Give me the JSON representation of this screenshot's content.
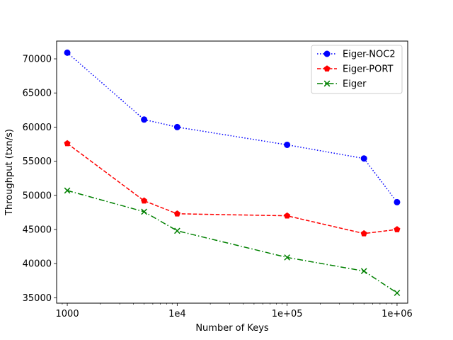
{
  "chart_data": {
    "type": "line",
    "xscale": "log",
    "xlabel": "Number of Keys",
    "ylabel": "Throughput (txn/s)",
    "xlim": [
      800,
      1250000
    ],
    "ylim": [
      34200,
      72600
    ],
    "x_ticks": [
      1000,
      10000,
      100000,
      1000000
    ],
    "x_tick_labels": [
      "1000",
      "1e4",
      "1e+05",
      "1e+06"
    ],
    "y_ticks": [
      35000,
      40000,
      45000,
      50000,
      55000,
      60000,
      65000,
      70000
    ],
    "y_tick_labels": [
      "35000",
      "40000",
      "45000",
      "50000",
      "55000",
      "60000",
      "65000",
      "70000"
    ],
    "x": [
      1000,
      5000,
      10000,
      100000,
      500000,
      1000000
    ],
    "series": [
      {
        "name": "Eiger-NOC2",
        "color": "#0000ff",
        "marker": "circle",
        "linestyle": "dotted",
        "values": [
          70900,
          61100,
          60000,
          57400,
          55400,
          49000
        ]
      },
      {
        "name": "Eiger-PORT",
        "color": "#ff0000",
        "marker": "pentagon",
        "linestyle": "dashed",
        "values": [
          57600,
          49200,
          47300,
          47000,
          44400,
          45000
        ]
      },
      {
        "name": "Eiger",
        "color": "#008000",
        "marker": "x",
        "linestyle": "dashdot",
        "values": [
          50700,
          47600,
          44800,
          40900,
          38900,
          35700
        ]
      }
    ],
    "grid": false,
    "legend": "top-right"
  }
}
